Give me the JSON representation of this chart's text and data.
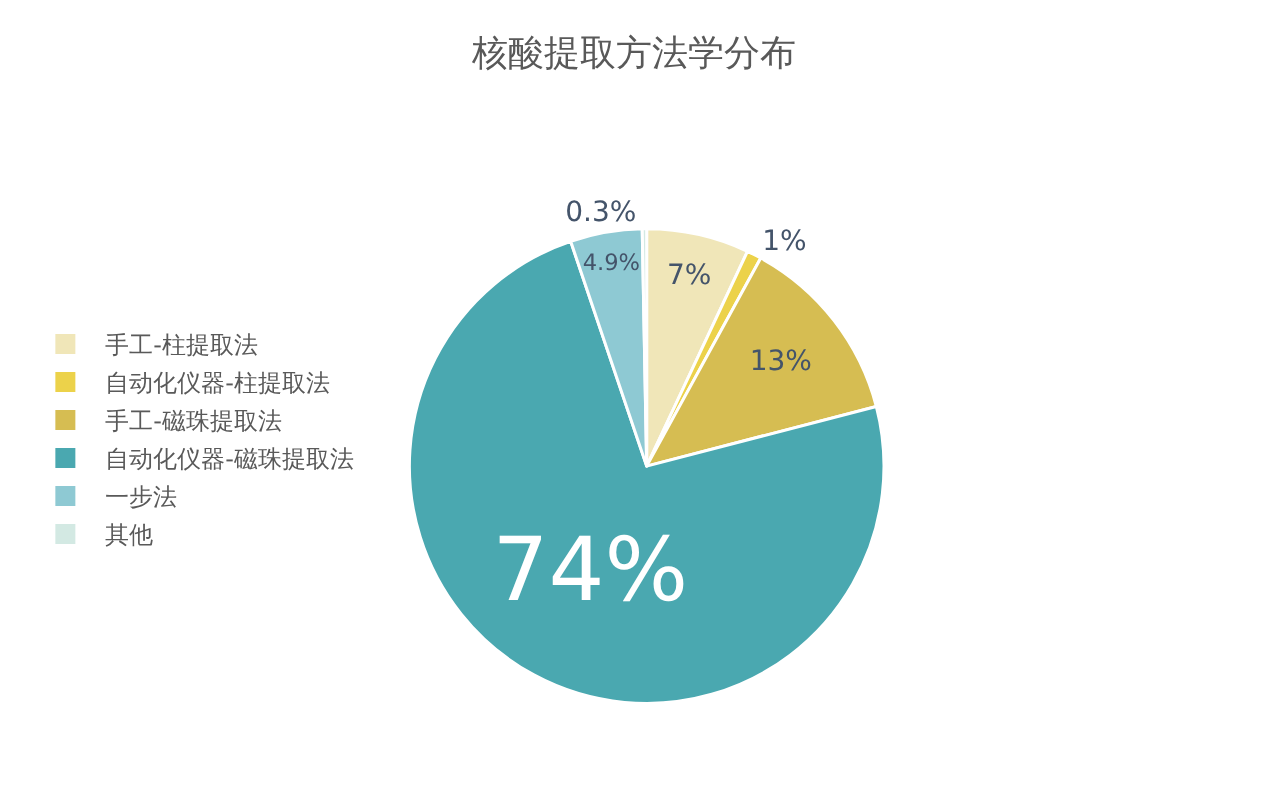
{
  "chart_data": {
    "type": "pie",
    "title": "核酸提取方法学分布",
    "categories": [
      "手工-柱提取法",
      "自动化仪器-柱提取法",
      "手工-磁珠提取法",
      "自动化仪器-磁珠提取法",
      "一步法",
      "其他"
    ],
    "values": [
      7,
      1,
      13,
      74,
      4.9,
      0.3
    ],
    "value_labels": [
      "7%",
      "1%",
      "13%",
      "74%",
      "4.9%",
      "0.3%"
    ],
    "colors": [
      "#f0e6b8",
      "#ecd24a",
      "#d6bd52",
      "#4aa8b0",
      "#8ec9d3",
      "#d3e9e3"
    ],
    "legend": "left"
  }
}
